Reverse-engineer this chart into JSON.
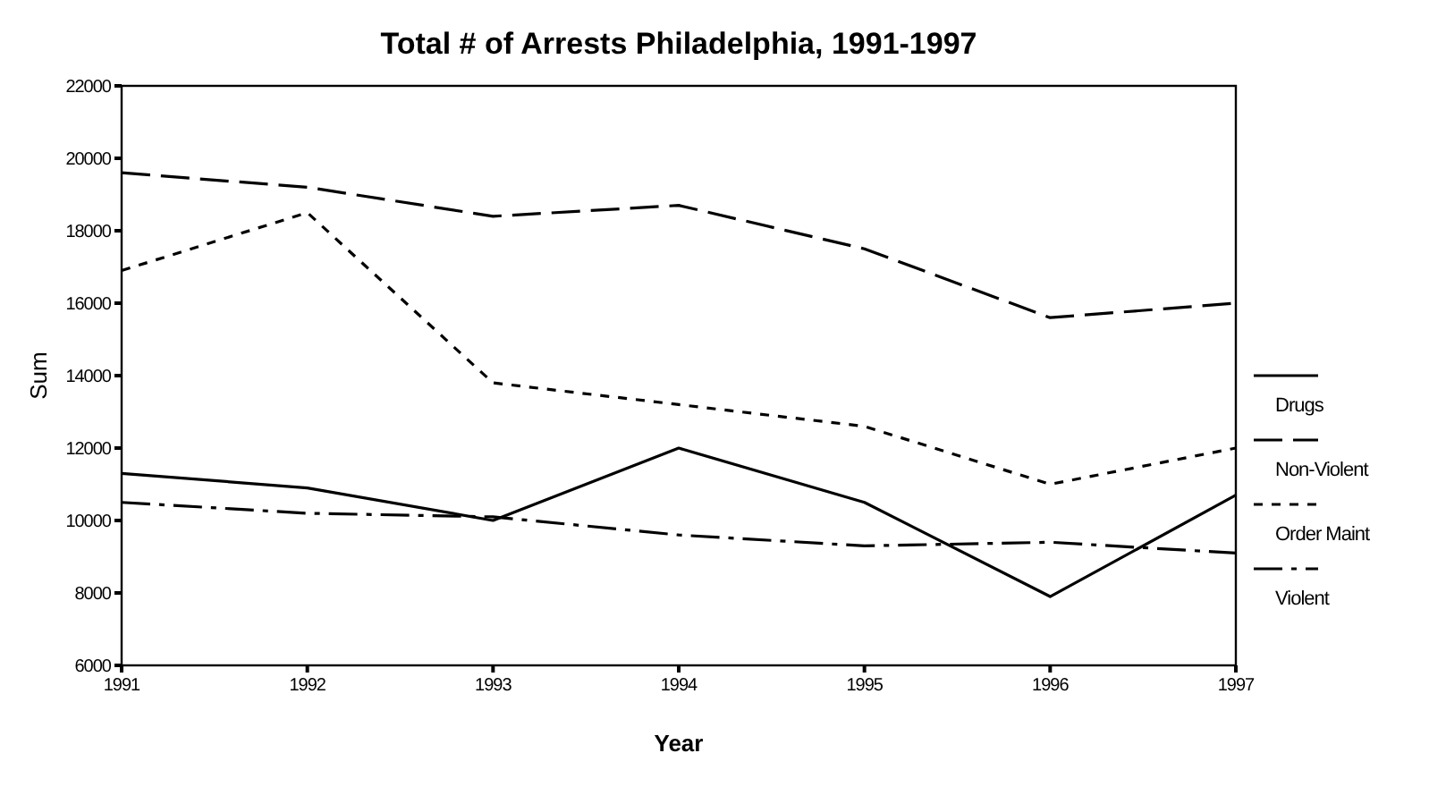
{
  "chart_data": {
    "type": "line",
    "title": "Total # of Arrests Philadelphia, 1991-1997",
    "xlabel": "Year",
    "ylabel": "Sum",
    "categories": [
      "1991",
      "1992",
      "1993",
      "1994",
      "1995",
      "1996",
      "1997"
    ],
    "ylim": [
      6000,
      22000
    ],
    "yticks": [
      6000,
      8000,
      10000,
      12000,
      14000,
      16000,
      18000,
      20000,
      22000
    ],
    "grid": false,
    "legend": "right",
    "marker": "none",
    "series": [
      {
        "name": "Drugs",
        "color": "#000000",
        "line_style": "solid",
        "values": [
          11300,
          10900,
          10000,
          12000,
          10500,
          7900,
          10700
        ]
      },
      {
        "name": "Non-Violent",
        "color": "#000000",
        "line_style": "dashed",
        "values": [
          19600,
          19200,
          18400,
          18700,
          17500,
          15600,
          16000
        ]
      },
      {
        "name": "Order Maint",
        "color": "#000000",
        "line_style": "dotted",
        "values": [
          16900,
          18500,
          13800,
          13200,
          12600,
          11000,
          12000
        ]
      },
      {
        "name": "Violent",
        "color": "#000000",
        "line_style": "dashdot",
        "values": [
          10500,
          10200,
          10100,
          9600,
          9300,
          9400,
          9100
        ]
      }
    ]
  }
}
